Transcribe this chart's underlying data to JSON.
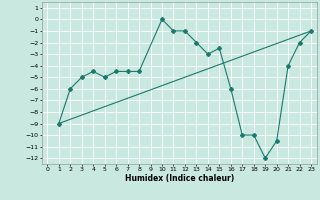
{
  "title": "",
  "xlabel": "Humidex (Indice chaleur)",
  "ylabel": "",
  "line1_x": [
    1,
    2,
    3,
    4,
    5,
    6,
    7,
    8,
    10,
    11,
    12,
    13,
    14,
    15,
    16,
    17,
    18,
    19,
    20,
    21,
    22,
    23
  ],
  "line1_y": [
    -9,
    -6,
    -5,
    -4.5,
    -5,
    -4.5,
    -4.5,
    -4.5,
    0,
    -1,
    -1,
    -2,
    -3,
    -2.5,
    -6,
    -10,
    -10,
    -12,
    -10.5,
    -4,
    -2,
    -1
  ],
  "line2_x": [
    1,
    23
  ],
  "line2_y": [
    -9,
    -1
  ],
  "line_color": "#1a7a6e",
  "bg_color": "#c8e8e0",
  "grid_color": "#ffffff",
  "xlim": [
    -0.5,
    23.5
  ],
  "ylim": [
    -12.5,
    1.5
  ],
  "xticks": [
    0,
    1,
    2,
    3,
    4,
    5,
    6,
    7,
    8,
    9,
    10,
    11,
    12,
    13,
    14,
    15,
    16,
    17,
    18,
    19,
    20,
    21,
    22,
    23
  ],
  "yticks": [
    1,
    0,
    -1,
    -2,
    -3,
    -4,
    -5,
    -6,
    -7,
    -8,
    -9,
    -10,
    -11,
    -12
  ],
  "marker": "D",
  "markersize": 2,
  "linewidth": 0.8,
  "tick_fontsize": 4.5,
  "xlabel_fontsize": 5.5
}
